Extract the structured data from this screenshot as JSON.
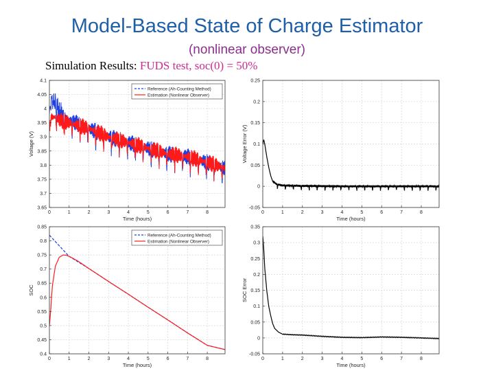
{
  "slide": {
    "title": "Model-Based State of Charge Estimator",
    "subtitle": "(nonlinear observer)",
    "heading_prefix": "Simulation Results: ",
    "heading_highlight": "FUDS test, soc(0) = 50%",
    "colors": {
      "title": "#1f5fa8",
      "subtitle": "#8a2f8c",
      "highlight": "#cc2b8f"
    }
  },
  "chart_data": [
    {
      "type": "line",
      "xlabel": "Time (hours)",
      "ylabel": "Voltage (V)",
      "xlim": [
        0,
        8.9
      ],
      "ylim": [
        3.65,
        4.1
      ],
      "xticks": [
        0,
        1,
        2,
        3,
        4,
        5,
        6,
        7,
        8
      ],
      "yticks": [
        3.65,
        3.7,
        3.75,
        3.8,
        3.85,
        3.9,
        3.95,
        4,
        4.05,
        4.1
      ],
      "grid": true,
      "legend": "top-right",
      "series": [
        {
          "name": "Reference (Ah-Counting Method)",
          "color": "#1f3fe0",
          "style": "dashed",
          "x": [
            0,
            0.1,
            0.3,
            0.5,
            1,
            2,
            3,
            4,
            5,
            6,
            7,
            8,
            8.9
          ],
          "y": [
            3.98,
            4.03,
            4.02,
            3.99,
            3.96,
            3.93,
            3.9,
            3.88,
            3.86,
            3.84,
            3.83,
            3.81,
            3.79
          ]
        },
        {
          "name": "Estimation (Nonlinear Observer)",
          "color": "#ff1a1a",
          "style": "solid",
          "x": [
            0,
            0.1,
            0.3,
            0.5,
            1,
            2,
            3,
            4,
            5,
            6,
            7,
            8,
            8.9
          ],
          "y": [
            3.93,
            3.97,
            3.97,
            3.96,
            3.95,
            3.93,
            3.9,
            3.88,
            3.86,
            3.84,
            3.83,
            3.81,
            3.79
          ]
        }
      ]
    },
    {
      "type": "line",
      "xlabel": "Time (hours)",
      "ylabel": "Voltage Error (V)",
      "xlim": [
        0,
        8.9
      ],
      "ylim": [
        -0.05,
        0.25
      ],
      "xticks": [
        0,
        1,
        2,
        3,
        4,
        5,
        6,
        7,
        8
      ],
      "yticks": [
        -0.05,
        0,
        0.05,
        0.1,
        0.15,
        0.2,
        0.25
      ],
      "grid": true,
      "series": [
        {
          "color": "#000000",
          "style": "solid",
          "x": [
            0,
            0.05,
            0.1,
            0.2,
            0.3,
            0.4,
            0.5,
            0.7,
            1,
            2,
            4,
            6,
            8,
            8.9
          ],
          "y": [
            0.1,
            0.11,
            0.1,
            0.07,
            0.045,
            0.025,
            0.012,
            0.005,
            0.002,
            0.001,
            0,
            0,
            0,
            0
          ]
        }
      ]
    },
    {
      "type": "line",
      "xlabel": "Time (hours)",
      "ylabel": "SOC",
      "xlim": [
        0,
        8.9
      ],
      "ylim": [
        0.4,
        0.85
      ],
      "xticks": [
        0,
        1,
        2,
        3,
        4,
        5,
        6,
        7,
        8
      ],
      "yticks": [
        0.4,
        0.45,
        0.5,
        0.55,
        0.6,
        0.65,
        0.7,
        0.75,
        0.8,
        0.85
      ],
      "grid": true,
      "legend": "top-right",
      "series": [
        {
          "name": "Reference (Ah-Counting Method)",
          "color": "#1f3fe0",
          "style": "dashed",
          "x": [
            0,
            1,
            2,
            3,
            4,
            5,
            6,
            7,
            8,
            8.9
          ],
          "y": [
            0.82,
            0.745,
            0.702,
            0.656,
            0.611,
            0.565,
            0.52,
            0.474,
            0.43,
            0.415
          ]
        },
        {
          "name": "Estimation (Nonlinear Observer)",
          "color": "#ff1a1a",
          "style": "solid",
          "x": [
            0,
            0.05,
            0.15,
            0.3,
            0.5,
            0.7,
            0.85,
            1,
            1.2,
            1.5,
            2,
            3,
            4,
            5,
            6,
            7,
            8,
            8.9
          ],
          "y": [
            0.5,
            0.54,
            0.64,
            0.71,
            0.742,
            0.75,
            0.749,
            0.745,
            0.738,
            0.726,
            0.702,
            0.656,
            0.611,
            0.565,
            0.52,
            0.474,
            0.43,
            0.415
          ]
        }
      ]
    },
    {
      "type": "line",
      "xlabel": "Time (hours)",
      "ylabel": "SOC Error",
      "xlim": [
        0,
        8.9
      ],
      "ylim": [
        -0.05,
        0.35
      ],
      "xticks": [
        0,
        1,
        2,
        3,
        4,
        5,
        6,
        7,
        8
      ],
      "yticks": [
        -0.05,
        0,
        0.05,
        0.1,
        0.15,
        0.2,
        0.25,
        0.3,
        0.35
      ],
      "grid": true,
      "series": [
        {
          "color": "#000000",
          "style": "solid",
          "x": [
            0,
            0.05,
            0.1,
            0.2,
            0.3,
            0.4,
            0.5,
            0.6,
            0.8,
            1,
            1.5,
            2,
            3,
            4,
            5,
            6,
            7,
            8,
            8.9
          ],
          "y": [
            0.32,
            0.28,
            0.22,
            0.15,
            0.1,
            0.07,
            0.045,
            0.03,
            0.018,
            0.012,
            0.01,
            0.009,
            0.005,
            0.002,
            0.001,
            0.003,
            0.002,
            0,
            -0.002
          ]
        }
      ]
    }
  ]
}
